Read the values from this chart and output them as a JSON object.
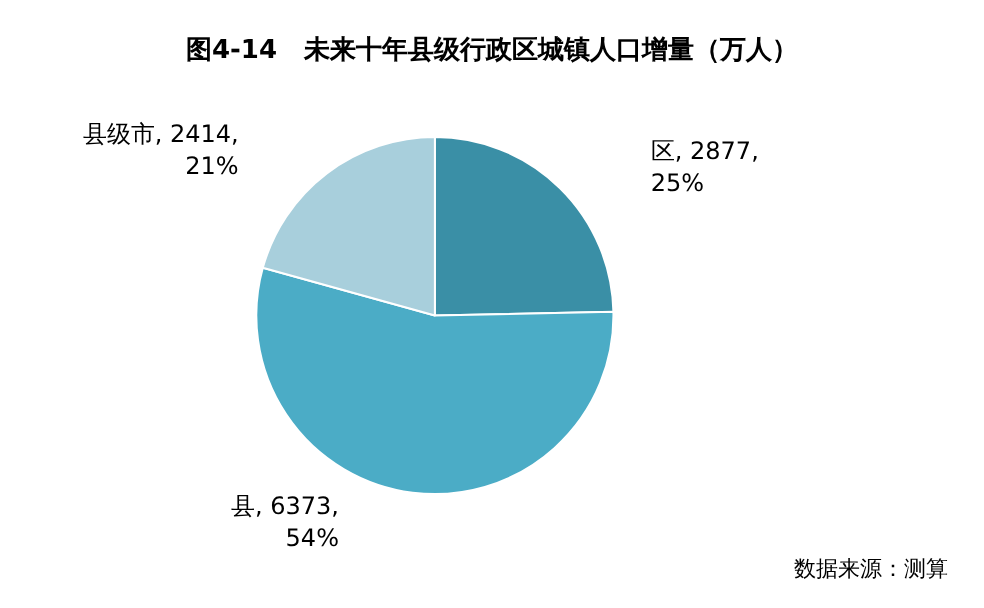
{
  "chart_data": {
    "type": "pie",
    "title": "图4-14   未来十年县级行政区城镇人口增量（万人）",
    "categories": [
      "区",
      "县",
      "县级市"
    ],
    "values": [
      2877,
      6373,
      2414
    ],
    "colors": [
      "#3a8fa6",
      "#4bacc6",
      "#a8cfdc"
    ],
    "value_labels": [
      "2877,\n25%",
      "6373,\n54%",
      "2414,\n21%"
    ],
    "annotations": [
      "数据来源：测算"
    ]
  }
}
